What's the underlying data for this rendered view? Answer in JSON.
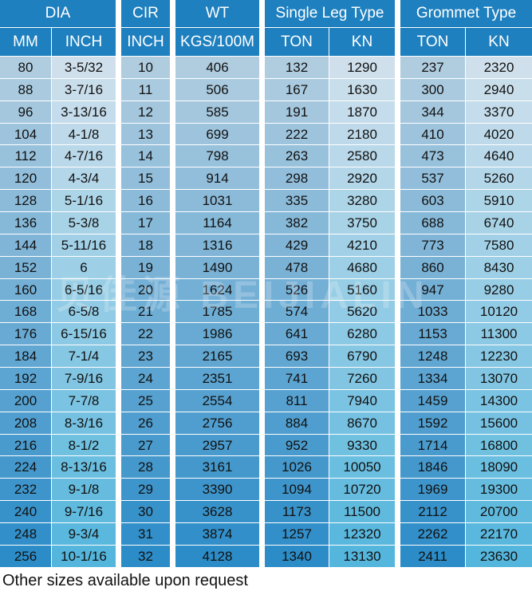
{
  "headers": {
    "dia": "DIA",
    "cir": "CIR",
    "wt": "WT",
    "single": "Single Leg Type",
    "grommet": "Grommet Type",
    "mm": "MM",
    "inch": "INCH",
    "cir_inch": "INCH",
    "kgs": "KGS/100M",
    "ton1": "TON",
    "kn1": "KN",
    "ton2": "TON",
    "kn2": "KN"
  },
  "rows": [
    [
      "80",
      "3-5/32",
      "10",
      "406",
      "132",
      "1290",
      "237",
      "2320"
    ],
    [
      "88",
      "3-7/16",
      "11",
      "506",
      "167",
      "1630",
      "300",
      "2940"
    ],
    [
      "96",
      "3-13/16",
      "12",
      "585",
      "191",
      "1870",
      "344",
      "3370"
    ],
    [
      "104",
      "4-1/8",
      "13",
      "699",
      "222",
      "2180",
      "410",
      "4020"
    ],
    [
      "112",
      "4-7/16",
      "14",
      "798",
      "263",
      "2580",
      "473",
      "4640"
    ],
    [
      "120",
      "4-3/4",
      "15",
      "914",
      "298",
      "2920",
      "537",
      "5260"
    ],
    [
      "128",
      "5-1/16",
      "16",
      "1031",
      "335",
      "3280",
      "603",
      "5910"
    ],
    [
      "136",
      "5-3/8",
      "17",
      "1164",
      "382",
      "3750",
      "688",
      "6740"
    ],
    [
      "144",
      "5-11/16",
      "18",
      "1316",
      "429",
      "4210",
      "773",
      "7580"
    ],
    [
      "152",
      "6",
      "19",
      "1490",
      "478",
      "4680",
      "860",
      "8430"
    ],
    [
      "160",
      "6-5/16",
      "20",
      "1624",
      "526",
      "5160",
      "947",
      "9280"
    ],
    [
      "168",
      "6-5/8",
      "21",
      "1785",
      "574",
      "5620",
      "1033",
      "10120"
    ],
    [
      "176",
      "6-15/16",
      "22",
      "1986",
      "641",
      "6280",
      "1153",
      "11300"
    ],
    [
      "184",
      "7-1/4",
      "23",
      "2165",
      "693",
      "6790",
      "1248",
      "12230"
    ],
    [
      "192",
      "7-9/16",
      "24",
      "2351",
      "741",
      "7260",
      "1334",
      "13070"
    ],
    [
      "200",
      "7-7/8",
      "25",
      "2554",
      "811",
      "7940",
      "1459",
      "14300"
    ],
    [
      "208",
      "8-3/16",
      "26",
      "2756",
      "884",
      "8670",
      "1592",
      "15600"
    ],
    [
      "216",
      "8-1/2",
      "27",
      "2957",
      "952",
      "9330",
      "1714",
      "16800"
    ],
    [
      "224",
      "8-13/16",
      "28",
      "3161",
      "1026",
      "10050",
      "1846",
      "18090"
    ],
    [
      "232",
      "9-1/8",
      "29",
      "3390",
      "1094",
      "10720",
      "1969",
      "19300"
    ],
    [
      "240",
      "9-7/16",
      "30",
      "3628",
      "1173",
      "11500",
      "2112",
      "20700"
    ],
    [
      "248",
      "9-3/4",
      "31",
      "3874",
      "1257",
      "12320",
      "2262",
      "22170"
    ],
    [
      "256",
      "10-1/16",
      "32",
      "4128",
      "1340",
      "13130",
      "2411",
      "23630"
    ]
  ],
  "watermark": "贝佳源 BEIJIALIN",
  "footer": "Other sizes available upon request",
  "colors": {
    "header": "#1f80bf"
  }
}
